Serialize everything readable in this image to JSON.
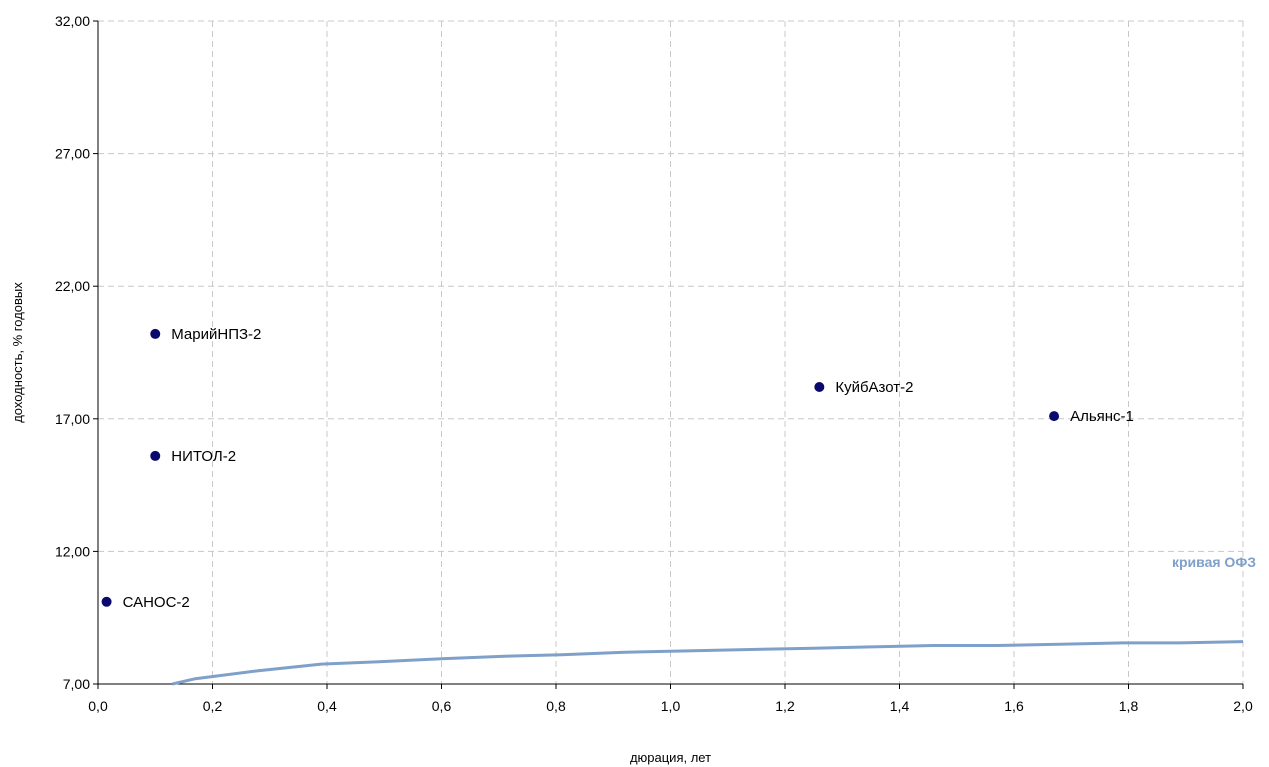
{
  "chart_data": {
    "type": "scatter",
    "xlabel": "дюрация, лет",
    "ylabel": "доходность, % годовых",
    "xlim": [
      0.0,
      2.0
    ],
    "ylim": [
      7.0,
      32.0
    ],
    "x_ticks": [
      0.0,
      0.2,
      0.4,
      0.6,
      0.8,
      1.0,
      1.2,
      1.4,
      1.6,
      1.8,
      2.0
    ],
    "x_tick_labels": [
      "0,0",
      "0,2",
      "0,4",
      "0,6",
      "0,8",
      "1,0",
      "1,2",
      "1,4",
      "1,6",
      "1,8",
      "2,0"
    ],
    "y_ticks": [
      7.0,
      12.0,
      17.0,
      22.0,
      27.0,
      32.0
    ],
    "y_tick_labels": [
      "7,00",
      "12,00",
      "17,00",
      "22,00",
      "27,00",
      "32,00"
    ],
    "grid": true,
    "points": [
      {
        "label": "МарийНПЗ-2",
        "x": 0.1,
        "y": 20.2
      },
      {
        "label": "НИТОЛ-2",
        "x": 0.1,
        "y": 15.6
      },
      {
        "label": "САНОС-2",
        "x": 0.015,
        "y": 10.1
      },
      {
        "label": "КуйбАзот-2",
        "x": 1.26,
        "y": 18.2
      },
      {
        "label": "Альянс-1",
        "x": 1.67,
        "y": 17.1
      }
    ],
    "curve": {
      "label": "кривая ОФЗ",
      "x": [
        0.13,
        0.17,
        0.28,
        0.39,
        0.5,
        0.6,
        0.71,
        0.81,
        0.92,
        1.03,
        1.14,
        1.25,
        1.35,
        1.46,
        1.57,
        1.68,
        1.79,
        1.89,
        2.0
      ],
      "y": [
        7.0,
        7.2,
        7.5,
        7.75,
        7.85,
        7.95,
        8.05,
        8.1,
        8.2,
        8.25,
        8.3,
        8.35,
        8.4,
        8.45,
        8.45,
        8.5,
        8.55,
        8.55,
        8.6
      ]
    },
    "colors": {
      "point": "#0a0a6e",
      "curve": "#7fa0c9",
      "grid": "#c8c8c8",
      "axis": "#000000"
    }
  }
}
